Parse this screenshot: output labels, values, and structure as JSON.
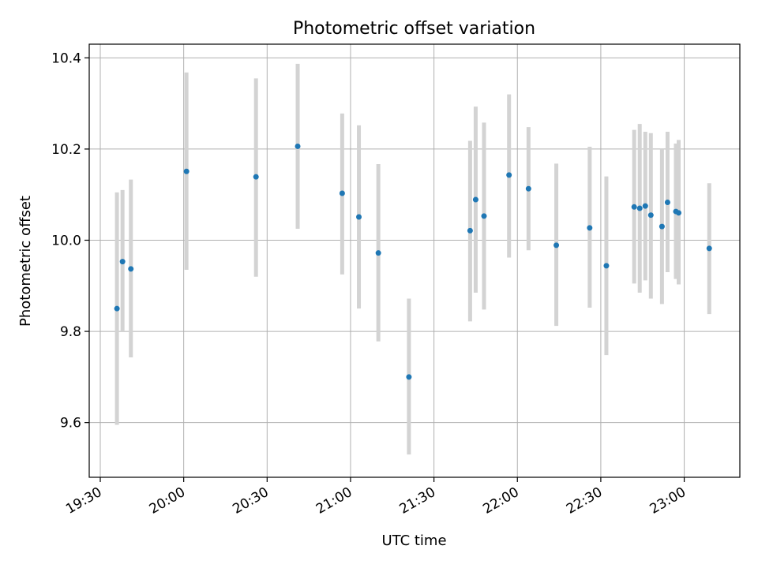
{
  "chart_data": {
    "type": "scatter",
    "title": "Photometric offset variation",
    "xlabel": "UTC time",
    "ylabel": "Photometric offset",
    "xlim": [
      "19:30",
      "23:20"
    ],
    "ylim": [
      9.48,
      10.43
    ],
    "grid": true,
    "legend": "none",
    "x_ticks": [
      "19:30",
      "20:00",
      "20:30",
      "21:00",
      "21:30",
      "22:00",
      "22:30",
      "23:00"
    ],
    "y_ticks": [
      "9.6",
      "9.8",
      "10.0",
      "10.2",
      "10.4"
    ],
    "colors": {
      "marker": "#1f77b4",
      "errorbar": "#d3d3d3",
      "grid": "#b0b0b0",
      "axes": "#000000"
    },
    "series": [
      {
        "x": [
          "19:36",
          "19:38",
          "19:41",
          "20:01",
          "20:26",
          "20:41",
          "20:57",
          "21:03",
          "21:10",
          "21:21",
          "21:43",
          "21:45",
          "21:48",
          "21:57",
          "22:04",
          "22:14",
          "22:26",
          "22:32",
          "22:42",
          "22:44",
          "22:46",
          "22:48",
          "22:52",
          "22:54",
          "22:57",
          "22:58",
          "23:09"
        ],
        "y": [
          9.85,
          9.953,
          9.937,
          10.151,
          10.139,
          10.206,
          10.103,
          10.051,
          9.972,
          9.7,
          10.021,
          10.089,
          10.053,
          10.143,
          10.113,
          9.989,
          10.027,
          9.944,
          10.073,
          10.07,
          10.075,
          10.055,
          10.03,
          10.083,
          10.063,
          10.06,
          9.982
        ],
        "err_low": [
          9.595,
          9.8,
          9.743,
          9.935,
          9.92,
          10.025,
          9.925,
          9.85,
          9.778,
          9.53,
          9.822,
          9.885,
          9.848,
          9.962,
          9.978,
          9.812,
          9.852,
          9.748,
          9.905,
          9.885,
          9.912,
          9.872,
          9.86,
          9.93,
          9.915,
          9.903,
          9.838
        ],
        "err_high": [
          10.105,
          10.11,
          10.133,
          10.368,
          10.355,
          10.387,
          10.278,
          10.252,
          10.167,
          9.872,
          10.218,
          10.293,
          10.258,
          10.32,
          10.248,
          10.168,
          10.205,
          10.14,
          10.242,
          10.255,
          10.238,
          10.235,
          10.2,
          10.238,
          10.212,
          10.22,
          10.125
        ]
      }
    ]
  }
}
